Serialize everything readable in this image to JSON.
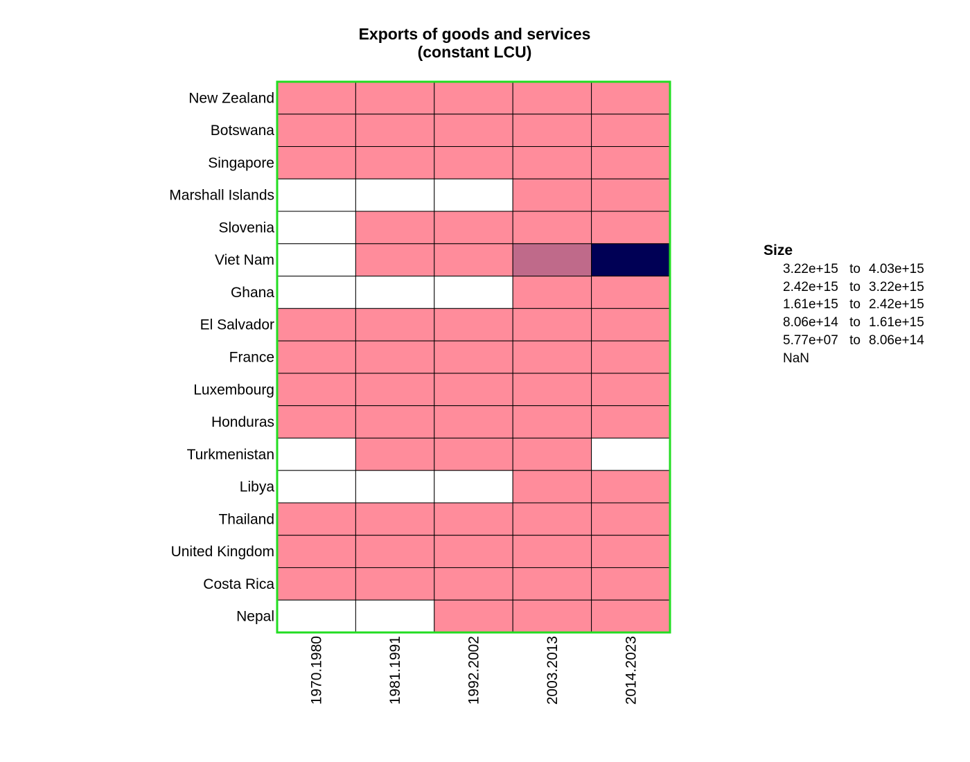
{
  "chart_data": {
    "type": "heatmap",
    "title": [
      "Exports of goods and services",
      "(constant LCU)"
    ],
    "x_categories": [
      "1970.1980",
      "1981.1991",
      "1992.2002",
      "2003.2013",
      "2014.2023"
    ],
    "y_categories": [
      "New Zealand",
      "Botswana",
      "Singapore",
      "Marshall Islands",
      "Slovenia",
      "Viet Nam",
      "Ghana",
      "El Salvador",
      "France",
      "Luxembourg",
      "Honduras",
      "Turkmenistan",
      "Libya",
      "Thailand",
      "United Kingdom",
      "Costa Rica",
      "Nepal"
    ],
    "bins": [
      {
        "from": "5.77e+07",
        "to": "8.06e+14",
        "color": "#ff8c9b"
      },
      {
        "from": "8.06e+14",
        "to": "1.61e+15",
        "color": "#bf6a8a"
      },
      {
        "from": "1.61e+15",
        "to": "2.42e+15",
        "color": "#80467a"
      },
      {
        "from": "2.42e+15",
        "to": "3.22e+15",
        "color": "#402368"
      },
      {
        "from": "3.22e+15",
        "to": "4.03e+15",
        "color": "#000055"
      }
    ],
    "nan_color": "#ffffff",
    "cells": [
      [
        0,
        0,
        0,
        0,
        0
      ],
      [
        0,
        0,
        0,
        0,
        0
      ],
      [
        0,
        0,
        0,
        0,
        0
      ],
      [
        null,
        null,
        null,
        0,
        0
      ],
      [
        null,
        0,
        0,
        0,
        0
      ],
      [
        null,
        0,
        0,
        1,
        4
      ],
      [
        null,
        null,
        null,
        0,
        0
      ],
      [
        0,
        0,
        0,
        0,
        0
      ],
      [
        0,
        0,
        0,
        0,
        0
      ],
      [
        0,
        0,
        0,
        0,
        0
      ],
      [
        0,
        0,
        0,
        0,
        0
      ],
      [
        null,
        0,
        0,
        0,
        null
      ],
      [
        null,
        null,
        null,
        0,
        0
      ],
      [
        0,
        0,
        0,
        0,
        0
      ],
      [
        0,
        0,
        0,
        0,
        0
      ],
      [
        0,
        0,
        0,
        0,
        0
      ],
      [
        null,
        null,
        0,
        0,
        0
      ]
    ],
    "legend": {
      "title": "Size",
      "to_word": "to",
      "rows": [
        {
          "from": "3.22e+15",
          "to": "4.03e+15"
        },
        {
          "from": "2.42e+15",
          "to": "3.22e+15"
        },
        {
          "from": "1.61e+15",
          "to": "2.42e+15"
        },
        {
          "from": "8.06e+14",
          "to": "1.61e+15"
        },
        {
          "from": "5.77e+07",
          "to": "8.06e+14"
        }
      ],
      "nan_label": "NaN"
    },
    "panel_border_color": "#22dd22"
  }
}
